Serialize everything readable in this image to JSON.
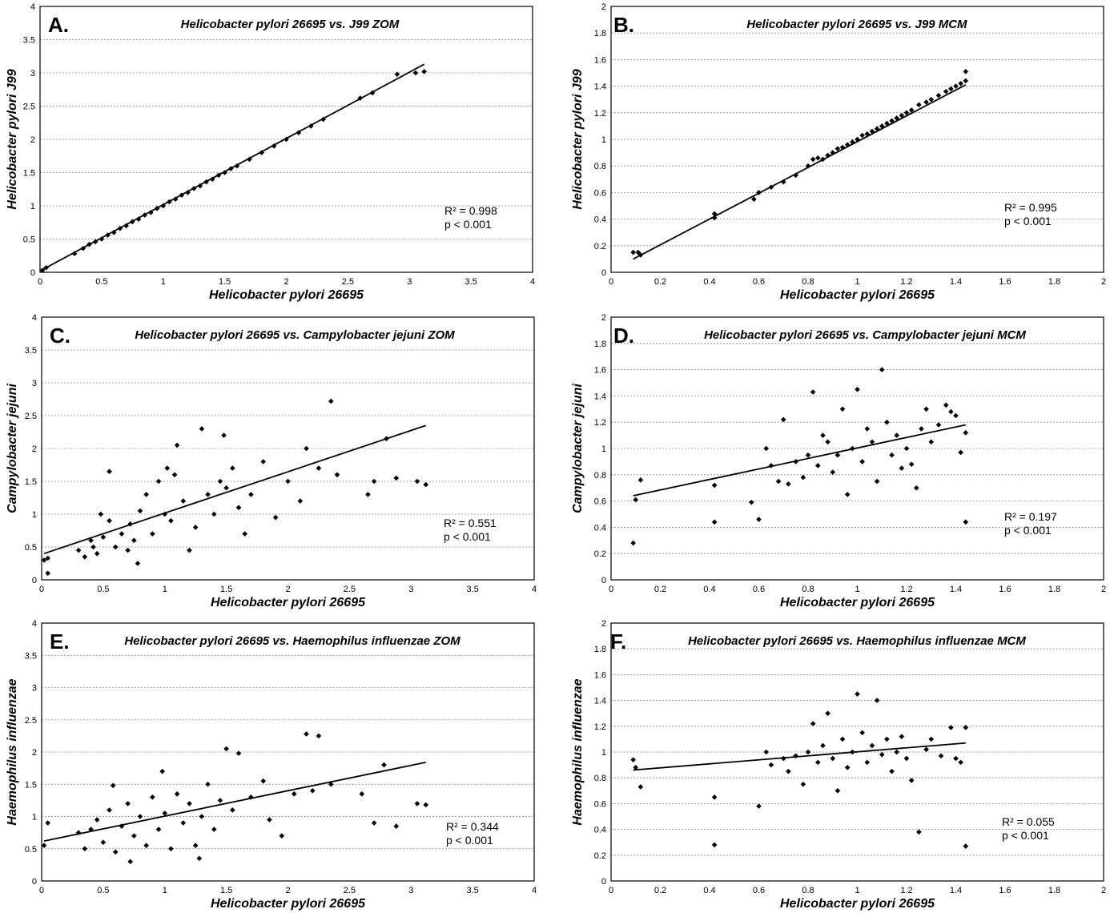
{
  "chart_data": [
    {
      "type": "scatter",
      "panel_label": "A.",
      "title": "Helicobacter pylori 26695 vs. J99 ZOM",
      "xlabel": "Helicobacter pylori 26695",
      "ylabel": "Helicobacter pylori J99",
      "xlim": [
        0,
        4
      ],
      "ylim": [
        0,
        4
      ],
      "xticks": [
        "0",
        "0.5",
        "1",
        "1.5",
        "2",
        "2.5",
        "3",
        "3.5",
        "4"
      ],
      "yticks": [
        "0",
        "0.5",
        "1",
        "1.5",
        "2",
        "2.5",
        "3",
        "3.5",
        "4"
      ],
      "grid": true,
      "r2_label": "R² = 0.998",
      "p_label": "p < 0.001",
      "trendline": [
        [
          0.0,
          0.02
        ],
        [
          3.12,
          3.13
        ]
      ],
      "points": [
        [
          0.02,
          0.03
        ],
        [
          0.05,
          0.07
        ],
        [
          0.28,
          0.28
        ],
        [
          0.35,
          0.36
        ],
        [
          0.4,
          0.42
        ],
        [
          0.45,
          0.46
        ],
        [
          0.5,
          0.5
        ],
        [
          0.55,
          0.56
        ],
        [
          0.6,
          0.6
        ],
        [
          0.65,
          0.66
        ],
        [
          0.7,
          0.7
        ],
        [
          0.75,
          0.76
        ],
        [
          0.8,
          0.8
        ],
        [
          0.85,
          0.86
        ],
        [
          0.9,
          0.9
        ],
        [
          0.95,
          0.96
        ],
        [
          1.0,
          1.0
        ],
        [
          1.05,
          1.06
        ],
        [
          1.1,
          1.1
        ],
        [
          1.15,
          1.16
        ],
        [
          1.2,
          1.2
        ],
        [
          1.25,
          1.26
        ],
        [
          1.3,
          1.3
        ],
        [
          1.35,
          1.36
        ],
        [
          1.4,
          1.4
        ],
        [
          1.45,
          1.46
        ],
        [
          1.5,
          1.5
        ],
        [
          1.55,
          1.56
        ],
        [
          1.6,
          1.6
        ],
        [
          1.7,
          1.7
        ],
        [
          1.8,
          1.8
        ],
        [
          1.9,
          1.9
        ],
        [
          2.0,
          2.0
        ],
        [
          2.1,
          2.1
        ],
        [
          2.2,
          2.2
        ],
        [
          2.3,
          2.3
        ],
        [
          2.6,
          2.62
        ],
        [
          2.7,
          2.7
        ],
        [
          2.9,
          2.98
        ],
        [
          3.05,
          3.0
        ],
        [
          3.12,
          3.02
        ]
      ]
    },
    {
      "type": "scatter",
      "panel_label": "B.",
      "title": "Helicobacter pylori 26695 vs. J99 MCM",
      "xlabel": "Helicobacter pylori 26695",
      "ylabel": "Helicobacter pylori J99",
      "xlim": [
        0,
        2
      ],
      "ylim": [
        0,
        2
      ],
      "xticks": [
        "0",
        "0.2",
        "0.4",
        "0.6",
        "0.8",
        "1",
        "1.2",
        "1.4",
        "1.6",
        "1.8",
        "2"
      ],
      "yticks": [
        "0",
        "0.2",
        "0.4",
        "0.6",
        "0.8",
        "1",
        "1.2",
        "1.4",
        "1.6",
        "1.8",
        "2"
      ],
      "grid": true,
      "r2_label": "R² = 0.995",
      "p_label": "p < 0.001",
      "trendline": [
        [
          0.09,
          0.1
        ],
        [
          1.44,
          1.41
        ]
      ],
      "points": [
        [
          0.09,
          0.15
        ],
        [
          0.11,
          0.15
        ],
        [
          0.12,
          0.13
        ],
        [
          0.42,
          0.44
        ],
        [
          0.42,
          0.41
        ],
        [
          0.58,
          0.55
        ],
        [
          0.6,
          0.6
        ],
        [
          0.65,
          0.64
        ],
        [
          0.7,
          0.68
        ],
        [
          0.75,
          0.73
        ],
        [
          0.8,
          0.8
        ],
        [
          0.82,
          0.85
        ],
        [
          0.84,
          0.86
        ],
        [
          0.86,
          0.85
        ],
        [
          0.88,
          0.88
        ],
        [
          0.9,
          0.9
        ],
        [
          0.92,
          0.93
        ],
        [
          0.94,
          0.94
        ],
        [
          0.96,
          0.96
        ],
        [
          0.98,
          0.98
        ],
        [
          1.0,
          1.0
        ],
        [
          1.02,
          1.03
        ],
        [
          1.04,
          1.04
        ],
        [
          1.06,
          1.06
        ],
        [
          1.08,
          1.08
        ],
        [
          1.1,
          1.1
        ],
        [
          1.12,
          1.12
        ],
        [
          1.14,
          1.14
        ],
        [
          1.16,
          1.16
        ],
        [
          1.18,
          1.18
        ],
        [
          1.2,
          1.2
        ],
        [
          1.22,
          1.22
        ],
        [
          1.25,
          1.26
        ],
        [
          1.28,
          1.28
        ],
        [
          1.3,
          1.3
        ],
        [
          1.33,
          1.33
        ],
        [
          1.36,
          1.36
        ],
        [
          1.38,
          1.38
        ],
        [
          1.4,
          1.4
        ],
        [
          1.42,
          1.42
        ],
        [
          1.44,
          1.44
        ],
        [
          1.44,
          1.51
        ]
      ]
    },
    {
      "type": "scatter",
      "panel_label": "C.",
      "title": "Helicobacter pylori 26695 vs. Campylobacter jejuni ZOM",
      "xlabel": "Helicobacter pylori 26695",
      "ylabel": "Campylobacter jejuni",
      "xlim": [
        0,
        4
      ],
      "ylim": [
        0,
        4
      ],
      "xticks": [
        "0",
        "0.5",
        "1",
        "1.5",
        "2",
        "2.5",
        "3",
        "3.5",
        "4"
      ],
      "yticks": [
        "0",
        "0.5",
        "1",
        "1.5",
        "2",
        "2.5",
        "3",
        "3.5",
        "4"
      ],
      "grid": true,
      "r2_label": "R² = 0.551",
      "p_label": "p < 0.001",
      "trendline": [
        [
          0.02,
          0.4
        ],
        [
          3.12,
          2.35
        ]
      ],
      "points": [
        [
          0.02,
          0.3
        ],
        [
          0.05,
          0.33
        ],
        [
          0.05,
          0.1
        ],
        [
          0.3,
          0.45
        ],
        [
          0.35,
          0.35
        ],
        [
          0.4,
          0.6
        ],
        [
          0.42,
          0.5
        ],
        [
          0.45,
          0.4
        ],
        [
          0.48,
          1.0
        ],
        [
          0.5,
          0.65
        ],
        [
          0.55,
          0.9
        ],
        [
          0.55,
          1.65
        ],
        [
          0.6,
          0.5
        ],
        [
          0.65,
          0.7
        ],
        [
          0.7,
          0.45
        ],
        [
          0.72,
          0.85
        ],
        [
          0.75,
          0.6
        ],
        [
          0.78,
          0.25
        ],
        [
          0.8,
          1.05
        ],
        [
          0.85,
          1.3
        ],
        [
          0.9,
          0.7
        ],
        [
          0.95,
          1.5
        ],
        [
          1.0,
          1.0
        ],
        [
          1.02,
          1.7
        ],
        [
          1.05,
          0.9
        ],
        [
          1.08,
          1.6
        ],
        [
          1.1,
          2.05
        ],
        [
          1.15,
          1.2
        ],
        [
          1.2,
          0.45
        ],
        [
          1.25,
          0.8
        ],
        [
          1.3,
          2.3
        ],
        [
          1.35,
          1.3
        ],
        [
          1.4,
          1.0
        ],
        [
          1.45,
          1.5
        ],
        [
          1.48,
          2.2
        ],
        [
          1.5,
          1.4
        ],
        [
          1.55,
          1.7
        ],
        [
          1.6,
          1.1
        ],
        [
          1.65,
          0.7
        ],
        [
          1.7,
          1.3
        ],
        [
          1.8,
          1.8
        ],
        [
          1.9,
          0.95
        ],
        [
          2.0,
          1.5
        ],
        [
          2.1,
          1.2
        ],
        [
          2.15,
          2.0
        ],
        [
          2.25,
          1.7
        ],
        [
          2.35,
          2.72
        ],
        [
          2.4,
          1.6
        ],
        [
          2.65,
          1.3
        ],
        [
          2.7,
          1.5
        ],
        [
          2.8,
          2.15
        ],
        [
          2.88,
          1.55
        ],
        [
          3.05,
          1.5
        ],
        [
          3.12,
          1.45
        ]
      ]
    },
    {
      "type": "scatter",
      "panel_label": "D.",
      "title": "Helicobacter pylori 26695 vs. Campylobacter jejuni MCM",
      "xlabel": "Helicobacter pylori 26695",
      "ylabel": "Campylobacter jejuni",
      "xlim": [
        0,
        2
      ],
      "ylim": [
        0,
        2
      ],
      "xticks": [
        "0",
        "0.2",
        "0.4",
        "0.6",
        "0.8",
        "1",
        "1.2",
        "1.4",
        "1.6",
        "1.8",
        "2"
      ],
      "yticks": [
        "0",
        "0.2",
        "0.4",
        "0.6",
        "0.8",
        "1",
        "1.2",
        "1.4",
        "1.6",
        "1.8",
        "2"
      ],
      "grid": true,
      "r2_label": "R² = 0.197",
      "p_label": "p < 0.001",
      "trendline": [
        [
          0.09,
          0.64
        ],
        [
          1.44,
          1.18
        ]
      ],
      "points": [
        [
          0.09,
          0.28
        ],
        [
          0.1,
          0.61
        ],
        [
          0.12,
          0.76
        ],
        [
          0.42,
          0.44
        ],
        [
          0.42,
          0.72
        ],
        [
          0.57,
          0.59
        ],
        [
          0.6,
          0.46
        ],
        [
          0.63,
          1.0
        ],
        [
          0.65,
          0.87
        ],
        [
          0.68,
          0.75
        ],
        [
          0.7,
          1.22
        ],
        [
          0.72,
          0.73
        ],
        [
          0.75,
          0.9
        ],
        [
          0.78,
          0.78
        ],
        [
          0.8,
          0.95
        ],
        [
          0.82,
          1.43
        ],
        [
          0.84,
          0.87
        ],
        [
          0.86,
          1.1
        ],
        [
          0.88,
          1.05
        ],
        [
          0.9,
          0.82
        ],
        [
          0.92,
          0.95
        ],
        [
          0.94,
          1.3
        ],
        [
          0.96,
          0.65
        ],
        [
          0.98,
          1.0
        ],
        [
          1.0,
          1.45
        ],
        [
          1.02,
          0.9
        ],
        [
          1.04,
          1.15
        ],
        [
          1.06,
          1.05
        ],
        [
          1.08,
          0.75
        ],
        [
          1.1,
          1.6
        ],
        [
          1.12,
          1.2
        ],
        [
          1.14,
          0.95
        ],
        [
          1.16,
          1.1
        ],
        [
          1.18,
          0.85
        ],
        [
          1.2,
          1.0
        ],
        [
          1.22,
          0.88
        ],
        [
          1.24,
          0.7
        ],
        [
          1.26,
          1.15
        ],
        [
          1.28,
          1.3
        ],
        [
          1.3,
          1.05
        ],
        [
          1.33,
          1.18
        ],
        [
          1.36,
          1.33
        ],
        [
          1.38,
          1.28
        ],
        [
          1.4,
          1.25
        ],
        [
          1.42,
          0.97
        ],
        [
          1.44,
          1.12
        ],
        [
          1.44,
          0.44
        ]
      ]
    },
    {
      "type": "scatter",
      "panel_label": "E.",
      "title": "Helicobacter pylori 26695 vs. Haemophilus influenzae ZOM",
      "xlabel": "Helicobacter pylori 26695",
      "ylabel": "Haemophilus influenzae",
      "xlim": [
        0,
        4
      ],
      "ylim": [
        0,
        4
      ],
      "xticks": [
        "0",
        "0.5",
        "1",
        "1.5",
        "2",
        "2.5",
        "3",
        "3.5",
        "4"
      ],
      "yticks": [
        "0",
        "0.5",
        "1",
        "1.5",
        "2",
        "2.5",
        "3",
        "3.5",
        "4"
      ],
      "grid": true,
      "r2_label": "R² = 0.344",
      "p_label": "p < 0.001",
      "trendline": [
        [
          0.02,
          0.62
        ],
        [
          3.12,
          1.84
        ]
      ],
      "points": [
        [
          0.02,
          0.55
        ],
        [
          0.05,
          0.9
        ],
        [
          0.3,
          0.75
        ],
        [
          0.35,
          0.5
        ],
        [
          0.4,
          0.8
        ],
        [
          0.45,
          0.95
        ],
        [
          0.5,
          0.6
        ],
        [
          0.55,
          1.1
        ],
        [
          0.58,
          1.48
        ],
        [
          0.6,
          0.45
        ],
        [
          0.65,
          0.85
        ],
        [
          0.7,
          1.2
        ],
        [
          0.72,
          0.3
        ],
        [
          0.75,
          0.7
        ],
        [
          0.8,
          1.0
        ],
        [
          0.85,
          0.55
        ],
        [
          0.9,
          1.3
        ],
        [
          0.95,
          0.8
        ],
        [
          0.98,
          1.7
        ],
        [
          1.0,
          1.05
        ],
        [
          1.05,
          0.5
        ],
        [
          1.1,
          1.35
        ],
        [
          1.15,
          0.9
        ],
        [
          1.2,
          1.2
        ],
        [
          1.25,
          0.55
        ],
        [
          1.28,
          0.35
        ],
        [
          1.3,
          1.0
        ],
        [
          1.35,
          1.5
        ],
        [
          1.4,
          0.8
        ],
        [
          1.45,
          1.25
        ],
        [
          1.5,
          2.05
        ],
        [
          1.55,
          1.1
        ],
        [
          1.6,
          1.98
        ],
        [
          1.7,
          1.3
        ],
        [
          1.8,
          1.55
        ],
        [
          1.85,
          0.95
        ],
        [
          1.95,
          0.7
        ],
        [
          2.05,
          1.35
        ],
        [
          2.15,
          2.28
        ],
        [
          2.2,
          1.4
        ],
        [
          2.25,
          2.25
        ],
        [
          2.35,
          1.5
        ],
        [
          2.6,
          1.35
        ],
        [
          2.7,
          0.9
        ],
        [
          2.78,
          1.8
        ],
        [
          2.88,
          0.85
        ],
        [
          3.05,
          1.2
        ],
        [
          3.12,
          1.18
        ]
      ]
    },
    {
      "type": "scatter",
      "panel_label": "F.",
      "title": "Helicobacter pylori 26695 vs. Haemophilus influenzae MCM",
      "xlabel": "Helicobacter pylori 26695",
      "ylabel": "Haemophilus influenzae",
      "xlim": [
        0,
        2
      ],
      "ylim": [
        0,
        2
      ],
      "xticks": [
        "0",
        "0.2",
        "0.4",
        "0.6",
        "0.8",
        "1",
        "1.2",
        "1.4",
        "1.6",
        "1.8",
        "2"
      ],
      "yticks": [
        "0",
        "0.2",
        "0.4",
        "0.6",
        "0.8",
        "1",
        "1.2",
        "1.4",
        "1.6",
        "1.8",
        "2"
      ],
      "grid": true,
      "r2_label": "R² = 0.055",
      "p_label": "p < 0.001",
      "trendline": [
        [
          0.09,
          0.86
        ],
        [
          1.44,
          1.07
        ]
      ],
      "points": [
        [
          0.09,
          0.94
        ],
        [
          0.1,
          0.88
        ],
        [
          0.12,
          0.73
        ],
        [
          0.42,
          0.28
        ],
        [
          0.42,
          0.65
        ],
        [
          0.6,
          0.58
        ],
        [
          0.63,
          1.0
        ],
        [
          0.65,
          0.9
        ],
        [
          0.7,
          0.95
        ],
        [
          0.72,
          0.85
        ],
        [
          0.75,
          0.97
        ],
        [
          0.78,
          0.75
        ],
        [
          0.8,
          1.0
        ],
        [
          0.82,
          1.22
        ],
        [
          0.84,
          0.92
        ],
        [
          0.86,
          1.05
        ],
        [
          0.88,
          1.3
        ],
        [
          0.9,
          0.95
        ],
        [
          0.92,
          0.7
        ],
        [
          0.94,
          1.1
        ],
        [
          0.96,
          0.88
        ],
        [
          0.98,
          1.0
        ],
        [
          1.0,
          1.45
        ],
        [
          1.02,
          1.15
        ],
        [
          1.04,
          0.92
        ],
        [
          1.06,
          1.05
        ],
        [
          1.08,
          1.4
        ],
        [
          1.1,
          0.98
        ],
        [
          1.12,
          1.1
        ],
        [
          1.14,
          0.85
        ],
        [
          1.16,
          1.0
        ],
        [
          1.18,
          1.12
        ],
        [
          1.2,
          0.95
        ],
        [
          1.22,
          0.78
        ],
        [
          1.25,
          0.38
        ],
        [
          1.28,
          1.02
        ],
        [
          1.3,
          1.1
        ],
        [
          1.34,
          0.97
        ],
        [
          1.38,
          1.19
        ],
        [
          1.4,
          0.95
        ],
        [
          1.42,
          0.92
        ],
        [
          1.44,
          1.19
        ],
        [
          1.44,
          0.27
        ]
      ]
    }
  ]
}
